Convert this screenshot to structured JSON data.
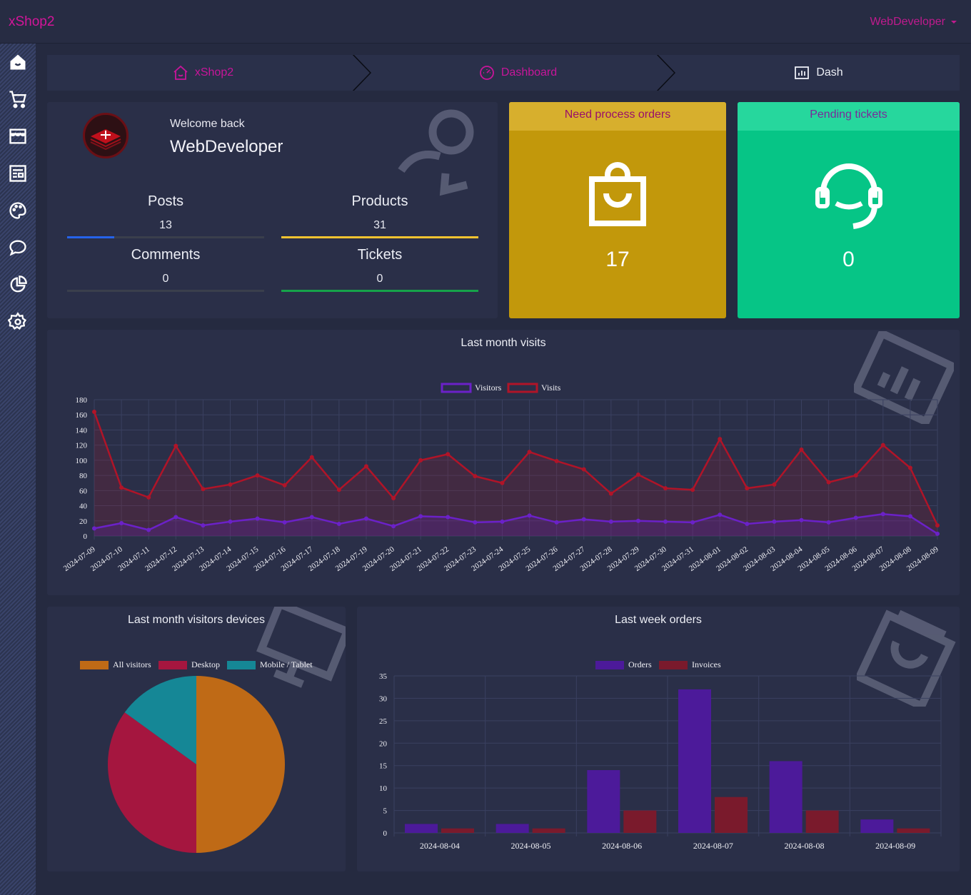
{
  "topbar": {
    "brand": "xShop2",
    "user": "WebDeveloper"
  },
  "sidebar": {
    "items": [
      {
        "name": "home-icon"
      },
      {
        "name": "cart-icon"
      },
      {
        "name": "store-icon"
      },
      {
        "name": "article-icon"
      },
      {
        "name": "palette-icon"
      },
      {
        "name": "chat-icon"
      },
      {
        "name": "pie-chart-icon"
      },
      {
        "name": "settings-icon"
      }
    ]
  },
  "breadcrumb": {
    "items": [
      "xShop2",
      "Dashboard",
      "Dash"
    ]
  },
  "welcome": {
    "greeting": "Welcome back",
    "username": "WebDeveloper",
    "stats": [
      {
        "label": "Posts",
        "value": "13",
        "fraction": 0.24
      },
      {
        "label": "Products",
        "value": "31",
        "fraction": 1.0
      },
      {
        "label": "Comments",
        "value": "0",
        "fraction": 0
      },
      {
        "label": "Tickets",
        "value": "0",
        "fraction": 1.0
      }
    ]
  },
  "tiles": {
    "orders": {
      "title": "Need process orders",
      "value": "17"
    },
    "tickets": {
      "title": "Pending tickets",
      "value": "0"
    }
  },
  "colors": {
    "accent": "#d4159a",
    "blue": "#2563eb",
    "yellow": "#f4c430",
    "green": "#16a34a",
    "orders_tile": "#c2980b",
    "orders_head": "#d7af2d",
    "tickets_tile": "#06c586",
    "tickets_head": "#26d79d",
    "visitors": "#6b21c8",
    "visits": "#b01428",
    "all_visitors": "#bf6a16",
    "desktop": "#a5163f",
    "mobile": "#158796",
    "invoices": "#7a1a2c"
  },
  "chart_data": [
    {
      "type": "line",
      "title": "Last month visits",
      "x": [
        "2024-07-09",
        "2024-07-10",
        "2024-07-11",
        "2024-07-12",
        "2024-07-13",
        "2024-07-14",
        "2024-07-15",
        "2024-07-16",
        "2024-07-17",
        "2024-07-18",
        "2024-07-19",
        "2024-07-20",
        "2024-07-21",
        "2024-07-22",
        "2024-07-23",
        "2024-07-24",
        "2024-07-25",
        "2024-07-26",
        "2024-07-27",
        "2024-07-28",
        "2024-07-29",
        "2024-07-30",
        "2024-07-31",
        "2024-08-01",
        "2024-08-02",
        "2024-08-03",
        "2024-08-04",
        "2024-08-05",
        "2024-08-06",
        "2024-08-07",
        "2024-08-08",
        "2024-08-09"
      ],
      "series": [
        {
          "name": "Visitors",
          "values": [
            10,
            17,
            8,
            25,
            14,
            19,
            23,
            18,
            25,
            16,
            23,
            13,
            26,
            25,
            18,
            19,
            27,
            18,
            22,
            19,
            20,
            19,
            18,
            28,
            16,
            19,
            21,
            18,
            24,
            29,
            26,
            3
          ]
        },
        {
          "name": "Visits",
          "values": [
            164,
            64,
            51,
            119,
            62,
            68,
            80,
            67,
            104,
            61,
            92,
            50,
            100,
            108,
            79,
            70,
            111,
            99,
            88,
            56,
            81,
            63,
            61,
            128,
            63,
            68,
            114,
            71,
            80,
            120,
            90,
            14
          ]
        }
      ],
      "ylim": [
        0,
        180
      ],
      "yticks": [
        0,
        20,
        40,
        60,
        80,
        100,
        120,
        140,
        160,
        180
      ]
    },
    {
      "type": "pie",
      "title": "Last month visitors devices",
      "labels": [
        "All visitors",
        "Desktop",
        "Mobile / Tablet"
      ],
      "values": [
        50,
        35,
        15
      ]
    },
    {
      "type": "bar",
      "title": "Last week orders",
      "categories": [
        "2024-08-04",
        "2024-08-05",
        "2024-08-06",
        "2024-08-07",
        "2024-08-08",
        "2024-08-09"
      ],
      "series": [
        {
          "name": "Orders",
          "values": [
            2,
            2,
            14,
            32,
            16,
            3
          ]
        },
        {
          "name": "Invoices",
          "values": [
            1,
            1,
            5,
            8,
            5,
            1
          ]
        }
      ],
      "ylim": [
        0,
        35
      ],
      "yticks": [
        0,
        5,
        10,
        15,
        20,
        25,
        30,
        35
      ]
    }
  ]
}
